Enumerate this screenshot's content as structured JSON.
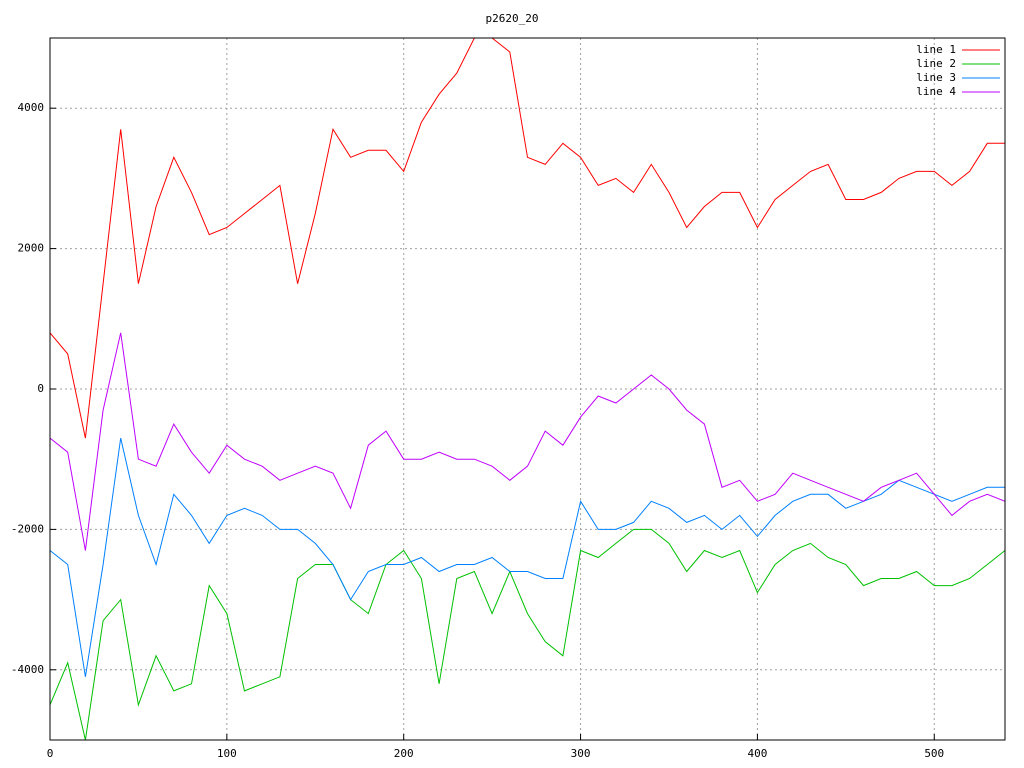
{
  "chart_data": {
    "type": "line",
    "title": "p2620_20",
    "x": [
      0,
      10,
      20,
      30,
      40,
      50,
      60,
      70,
      80,
      90,
      100,
      110,
      120,
      130,
      140,
      150,
      160,
      170,
      180,
      190,
      200,
      210,
      220,
      230,
      240,
      250,
      260,
      270,
      280,
      290,
      300,
      310,
      320,
      330,
      340,
      350,
      360,
      370,
      380,
      390,
      400,
      410,
      420,
      430,
      440,
      450,
      460,
      470,
      480,
      490,
      500,
      510,
      520,
      530,
      540
    ],
    "series": [
      {
        "name": "line 1",
        "color": "#ff0000",
        "values": [
          800,
          500,
          -700,
          1500,
          3700,
          1500,
          2600,
          3300,
          2800,
          2200,
          2300,
          2500,
          2700,
          2900,
          1500,
          2500,
          3700,
          3300,
          3400,
          3400,
          3100,
          3800,
          4200,
          4500,
          5000,
          5000,
          4800,
          3300,
          3200,
          3500,
          3300,
          2900,
          3000,
          2800,
          3200,
          2800,
          2300,
          2600,
          2800,
          2800,
          2300,
          2700,
          2900,
          3100,
          3200,
          2700,
          2700,
          2800,
          3000,
          3100,
          3100,
          2900,
          3100,
          3500,
          3500
        ]
      },
      {
        "name": "line 2",
        "color": "#00c000",
        "values": [
          -4500,
          -3900,
          -5000,
          -3300,
          -3000,
          -4500,
          -3800,
          -4300,
          -4200,
          -2800,
          -3200,
          -4300,
          -4200,
          -4100,
          -2700,
          -2500,
          -2500,
          -3000,
          -3200,
          -2500,
          -2300,
          -2700,
          -4200,
          -2700,
          -2600,
          -3200,
          -2600,
          -3200,
          -3600,
          -3800,
          -2300,
          -2400,
          -2200,
          -2000,
          -2000,
          -2200,
          -2600,
          -2300,
          -2400,
          -2300,
          -2900,
          -2500,
          -2300,
          -2200,
          -2400,
          -2500,
          -2800,
          -2700,
          -2700,
          -2600,
          -2800,
          -2800,
          -2700,
          -2500,
          -2300
        ]
      },
      {
        "name": "line 3",
        "color": "#0080ff",
        "values": [
          -2300,
          -2500,
          -4100,
          -2500,
          -700,
          -1800,
          -2500,
          -1500,
          -1800,
          -2200,
          -1800,
          -1700,
          -1800,
          -2000,
          -2000,
          -2200,
          -2500,
          -3000,
          -2600,
          -2500,
          -2500,
          -2400,
          -2600,
          -2500,
          -2500,
          -2400,
          -2600,
          -2600,
          -2700,
          -2700,
          -1600,
          -2000,
          -2000,
          -1900,
          -1600,
          -1700,
          -1900,
          -1800,
          -2000,
          -1800,
          -2100,
          -1800,
          -1600,
          -1500,
          -1500,
          -1700,
          -1600,
          -1500,
          -1300,
          -1400,
          -1500,
          -1600,
          -1500,
          -1400,
          -1400
        ]
      },
      {
        "name": "line 4",
        "color": "#c000ff",
        "values": [
          -700,
          -900,
          -2300,
          -300,
          800,
          -1000,
          -1100,
          -500,
          -900,
          -1200,
          -800,
          -1000,
          -1100,
          -1300,
          -1200,
          -1100,
          -1200,
          -1700,
          -800,
          -600,
          -1000,
          -1000,
          -900,
          -1000,
          -1000,
          -1100,
          -1300,
          -1100,
          -600,
          -800,
          -400,
          -100,
          -200,
          0,
          200,
          0,
          -300,
          -500,
          -1400,
          -1300,
          -1600,
          -1500,
          -1200,
          -1300,
          -1400,
          -1500,
          -1600,
          -1400,
          -1300,
          -1200,
          -1500,
          -1800,
          -1600,
          -1500,
          -1600
        ]
      }
    ],
    "xlim": [
      0,
      540
    ],
    "ylim": [
      -5000,
      5000
    ],
    "xticks": [
      0,
      100,
      200,
      300,
      400,
      500
    ],
    "yticks": [
      -4000,
      -2000,
      0,
      2000,
      4000
    ],
    "grid": true,
    "legend": "top-right"
  }
}
